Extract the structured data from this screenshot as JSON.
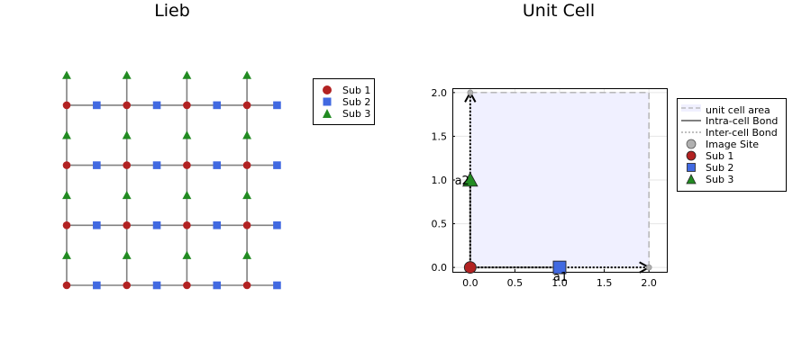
{
  "left_panel": {
    "title": "Lieb",
    "legend": [
      "Sub 1",
      "Sub 2",
      "Sub 3"
    ]
  },
  "right_panel": {
    "title": "Unit Cell",
    "legend": [
      "unit cell area",
      "Intra-cell Bond",
      "Inter-cell Bond",
      "Image Site",
      "Sub 1",
      "Sub 2",
      "Sub 3"
    ],
    "vector_labels": [
      "a1",
      "a2"
    ]
  },
  "colors": {
    "sub1": "#b22222",
    "sub2": "#4169e1",
    "sub3": "#228b22",
    "bond": "#808080",
    "cell_fill": "#f0f0ff",
    "image_site": "#b0b0b0"
  },
  "chart_data": [
    {
      "type": "scatter",
      "title": "Lieb",
      "lattice": {
        "cells_x": 4,
        "cells_y": 4,
        "lattice_constant": 2
      },
      "series": [
        {
          "name": "Sub 1",
          "marker": "circle",
          "basis": [
            0,
            0
          ]
        },
        {
          "name": "Sub 2",
          "marker": "square",
          "basis": [
            1,
            0
          ]
        },
        {
          "name": "Sub 3",
          "marker": "triangle",
          "basis": [
            0,
            1
          ]
        }
      ],
      "grid": false,
      "axes": false,
      "legend_position": "top-right"
    },
    {
      "type": "scatter",
      "title": "Unit Cell",
      "xlim": [
        -0.2,
        2.2
      ],
      "ylim": [
        -0.05,
        2.05
      ],
      "xticks": [
        "0.0",
        "0.5",
        "1.0",
        "1.5",
        "2.0"
      ],
      "yticks": [
        "0.0",
        "0.5",
        "1.0",
        "1.5",
        "2.0"
      ],
      "xtick_values": [
        0,
        0.5,
        1,
        1.5,
        2
      ],
      "ytick_values": [
        0,
        0.5,
        1,
        1.5,
        2
      ],
      "unit_cell": [
        [
          0,
          0
        ],
        [
          2,
          0
        ],
        [
          2,
          2
        ],
        [
          0,
          2
        ]
      ],
      "vectors": [
        {
          "name": "a1",
          "from": [
            0,
            0
          ],
          "to": [
            2,
            0
          ]
        },
        {
          "name": "a2",
          "from": [
            0,
            0
          ],
          "to": [
            0,
            2
          ]
        }
      ],
      "sites": [
        {
          "name": "Sub 1",
          "x": 0,
          "y": 0
        },
        {
          "name": "Sub 2",
          "x": 1,
          "y": 0
        },
        {
          "name": "Sub 3",
          "x": 0,
          "y": 1
        }
      ],
      "image_sites": [
        {
          "x": 2,
          "y": 0
        },
        {
          "x": 0,
          "y": 2
        }
      ],
      "grid": true,
      "legend_position": "top-right"
    }
  ]
}
